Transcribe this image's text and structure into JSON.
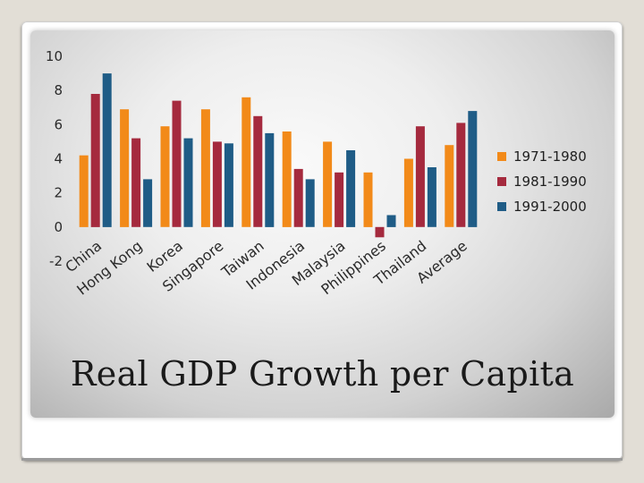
{
  "slide": {
    "title": "Real GDP Growth per Capita"
  },
  "chart_data": {
    "type": "bar",
    "categories": [
      "China",
      "Hong Kong",
      "Korea",
      "Singapore",
      "Taiwan",
      "Indonesia",
      "Malaysia",
      "Philippines",
      "Thailand",
      "Average"
    ],
    "series": [
      {
        "name": "1971-1980",
        "color": "#f28a19",
        "values": [
          4.2,
          6.9,
          5.9,
          6.9,
          7.6,
          5.6,
          5.0,
          3.2,
          4.0,
          4.8
        ]
      },
      {
        "name": "1981-1990",
        "color": "#a52a3e",
        "values": [
          7.8,
          5.2,
          7.4,
          5.0,
          6.5,
          3.4,
          3.2,
          -0.6,
          5.9,
          6.1
        ]
      },
      {
        "name": "1991-2000",
        "color": "#1f5c86",
        "values": [
          9.0,
          2.8,
          5.2,
          4.9,
          5.5,
          2.8,
          4.5,
          0.7,
          3.5,
          6.8
        ]
      }
    ],
    "ylim": [
      -2,
      10
    ],
    "yticks": [
      "10",
      "8",
      "6",
      "4",
      "2",
      "0",
      "-2"
    ],
    "grid": false,
    "legend_position": "right",
    "xlabel": "",
    "ylabel": ""
  }
}
